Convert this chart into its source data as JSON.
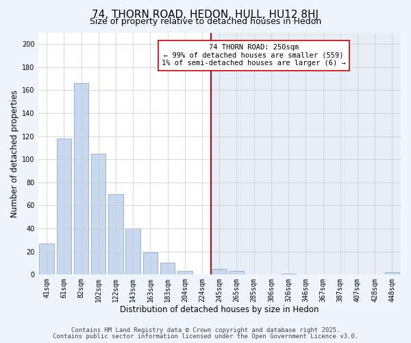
{
  "title": "74, THORN ROAD, HEDON, HULL, HU12 8HJ",
  "subtitle": "Size of property relative to detached houses in Hedon",
  "xlabel": "Distribution of detached houses by size in Hedon",
  "ylabel": "Number of detached properties",
  "bar_color": "#c8d8ee",
  "bar_edge_color": "#8aaad0",
  "background_color": "#f0f4fc",
  "plot_bg_left": "#ffffff",
  "plot_bg_right": "#e8eef8",
  "grid_color": "#c8c8d0",
  "categories": [
    "41sqm",
    "61sqm",
    "82sqm",
    "102sqm",
    "122sqm",
    "143sqm",
    "163sqm",
    "183sqm",
    "204sqm",
    "224sqm",
    "245sqm",
    "265sqm",
    "285sqm",
    "306sqm",
    "326sqm",
    "346sqm",
    "367sqm",
    "387sqm",
    "407sqm",
    "428sqm",
    "448sqm"
  ],
  "values": [
    27,
    118,
    166,
    105,
    70,
    40,
    19,
    10,
    3,
    0,
    5,
    3,
    0,
    0,
    1,
    0,
    0,
    0,
    0,
    0,
    2
  ],
  "vline_x_index": 10,
  "vline_color": "#cc0000",
  "annotation_title": "74 THORN ROAD: 250sqm",
  "annotation_line1": "← 99% of detached houses are smaller (559)",
  "annotation_line2": "1% of semi-detached houses are larger (6) →",
  "ylim": [
    0,
    210
  ],
  "yticks": [
    0,
    20,
    40,
    60,
    80,
    100,
    120,
    140,
    160,
    180,
    200
  ],
  "footer1": "Contains HM Land Registry data © Crown copyright and database right 2025.",
  "footer2": "Contains public sector information licensed under the Open Government Licence v3.0.",
  "title_fontsize": 11,
  "subtitle_fontsize": 9,
  "axis_label_fontsize": 8.5,
  "tick_fontsize": 7,
  "annotation_fontsize": 7.5,
  "footer_fontsize": 6.5
}
